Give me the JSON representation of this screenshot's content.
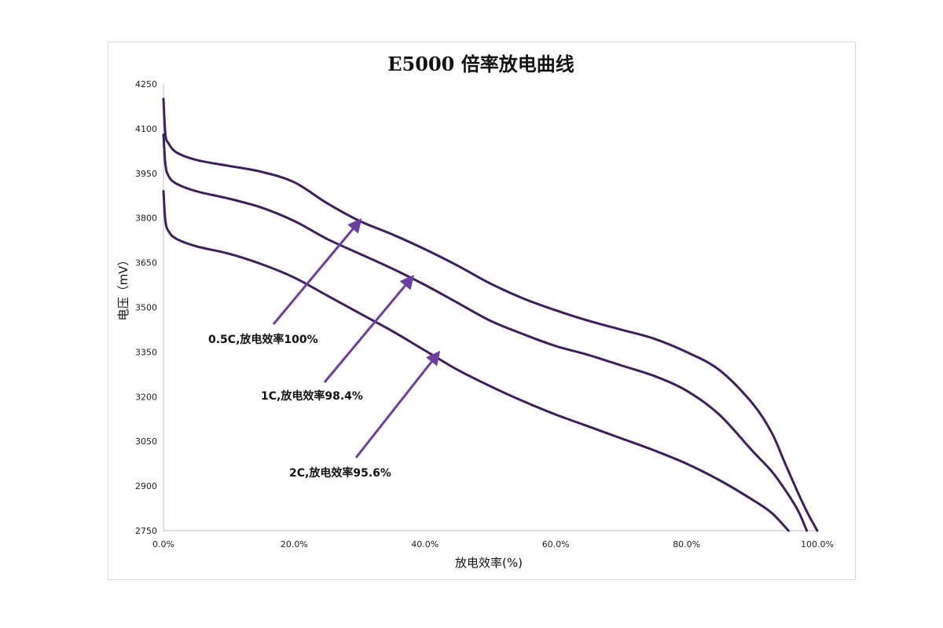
{
  "chart_data": {
    "type": "line",
    "title": "E5000  倍率放电曲线",
    "xlabel": "放电效率(%)",
    "ylabel": "电压（mV）",
    "xlim": [
      0,
      100
    ],
    "ylim": [
      2750,
      4250
    ],
    "x_ticks": [
      0,
      20,
      40,
      60,
      80,
      100
    ],
    "x_tick_labels": [
      "0.0%",
      "20.0%",
      "40.0%",
      "60.0%",
      "80.0%",
      "100.0%"
    ],
    "y_ticks": [
      2750,
      2900,
      3050,
      3200,
      3350,
      3500,
      3650,
      3800,
      3950,
      4100,
      4250
    ],
    "y_tick_labels": [
      "2750",
      "2900",
      "3050",
      "3200",
      "3350",
      "3500",
      "3650",
      "3800",
      "3950",
      "4100",
      "4250"
    ],
    "grid": false,
    "series": [
      {
        "x": [
          0,
          0.3,
          0.8,
          2,
          5,
          10,
          15,
          20,
          25,
          30,
          35,
          40,
          45,
          50,
          55,
          60,
          65,
          70,
          75,
          80,
          85,
          90,
          93,
          95,
          97,
          98.5,
          99.5,
          100
        ],
        "y": [
          4200,
          4080,
          4050,
          4020,
          3995,
          3975,
          3955,
          3920,
          3850,
          3790,
          3745,
          3695,
          3640,
          3580,
          3530,
          3490,
          3455,
          3425,
          3395,
          3350,
          3290,
          3180,
          3080,
          2980,
          2880,
          2810,
          2770,
          2750
        ]
      },
      {
        "x": [
          0,
          0.3,
          0.8,
          2,
          5,
          10,
          15,
          20,
          25,
          30,
          35,
          40,
          45,
          50,
          55,
          60,
          65,
          70,
          75,
          80,
          85,
          90,
          93,
          95,
          97,
          98.4
        ],
        "y": [
          4080,
          3980,
          3940,
          3915,
          3890,
          3865,
          3835,
          3790,
          3730,
          3680,
          3630,
          3575,
          3515,
          3455,
          3410,
          3370,
          3340,
          3305,
          3270,
          3220,
          3140,
          3020,
          2950,
          2890,
          2820,
          2750
        ]
      },
      {
        "x": [
          0,
          0.3,
          0.8,
          2,
          5,
          10,
          15,
          20,
          25,
          30,
          35,
          40,
          45,
          50,
          55,
          60,
          65,
          70,
          75,
          80,
          85,
          90,
          93,
          95.6
        ],
        "y": [
          3890,
          3790,
          3755,
          3730,
          3705,
          3680,
          3645,
          3600,
          3540,
          3480,
          3420,
          3355,
          3290,
          3235,
          3185,
          3140,
          3100,
          3060,
          3020,
          2975,
          2920,
          2855,
          2810,
          2750
        ]
      }
    ],
    "annotations": [
      {
        "text": "0.5C,放电效率100%",
        "arrow_to": {
          "x": 30,
          "y": 3790
        }
      },
      {
        "text": "1C,放电效率98.4%",
        "arrow_to": {
          "x": 38,
          "y": 3600
        }
      },
      {
        "text": "2C,放电效率95.6%",
        "arrow_to": {
          "x": 42,
          "y": 3345
        }
      }
    ],
    "colors": {
      "curve": "#3d1f5e",
      "arrow": "#6a3fa0"
    }
  }
}
